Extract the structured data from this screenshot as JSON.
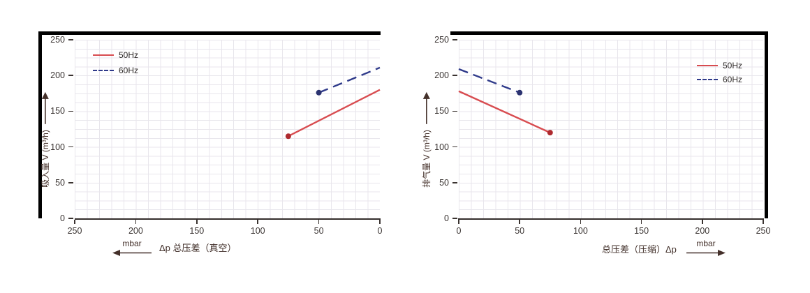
{
  "page": {
    "background": "#ffffff"
  },
  "colors": {
    "line_50hz": "#d84c50",
    "marker_50hz": "#ae2a2f",
    "line_60hz": "#2f3a8a",
    "marker_60hz": "#2b3370",
    "frame_bar": "#000000",
    "grid": "#e8e6ec",
    "axis_text": "#3b3533",
    "annotation_text": "#44302a"
  },
  "chart_data": [
    {
      "type": "line",
      "title": "",
      "ylabel": "吸入量 V (m³/h)",
      "xlabel": "Δp  总压差（真空）",
      "xunit": "mbar",
      "x_arrow_direction": "left",
      "xlim": [
        250,
        0
      ],
      "ylim": [
        0,
        250
      ],
      "xticks": [
        "250",
        "200",
        "150",
        "100",
        "50",
        "0"
      ],
      "yticks": [
        "250",
        "200",
        "150",
        "100",
        "50",
        "0"
      ],
      "grid": "minor",
      "legend_position": "top-left",
      "series": [
        {
          "name": "50Hz",
          "style": "solid",
          "color": "#d84c50",
          "marker_color": "#ae2a2f",
          "points": [
            {
              "x": 75,
              "y": 115
            },
            {
              "x": 0,
              "y": 180
            }
          ],
          "marker_points": [
            0
          ]
        },
        {
          "name": "60Hz",
          "style": "dashed",
          "color": "#2f3a8a",
          "marker_color": "#2b3370",
          "points": [
            {
              "x": 50,
              "y": 176
            },
            {
              "x": 0,
              "y": 211
            }
          ],
          "marker_points": [
            0
          ]
        }
      ]
    },
    {
      "type": "line",
      "title": "",
      "ylabel": "排气量 V (m³/h)",
      "xlabel": "总压差（压缩）Δp",
      "xunit": "mbar",
      "x_arrow_direction": "right",
      "xlim": [
        0,
        250
      ],
      "ylim": [
        0,
        250
      ],
      "xticks": [
        "0",
        "50",
        "100",
        "150",
        "200",
        "250"
      ],
      "yticks": [
        "250",
        "200",
        "150",
        "100",
        "50",
        "0"
      ],
      "grid": "minor",
      "legend_position": "top-right",
      "series": [
        {
          "name": "50Hz",
          "style": "solid",
          "color": "#d84c50",
          "marker_color": "#ae2a2f",
          "points": [
            {
              "x": 0,
              "y": 178
            },
            {
              "x": 75,
              "y": 120
            }
          ],
          "marker_points": [
            1
          ]
        },
        {
          "name": "60Hz",
          "style": "dashed",
          "color": "#2f3a8a",
          "marker_color": "#2b3370",
          "points": [
            {
              "x": 0,
              "y": 209
            },
            {
              "x": 50,
              "y": 176
            }
          ],
          "marker_points": [
            1
          ]
        }
      ]
    }
  ]
}
